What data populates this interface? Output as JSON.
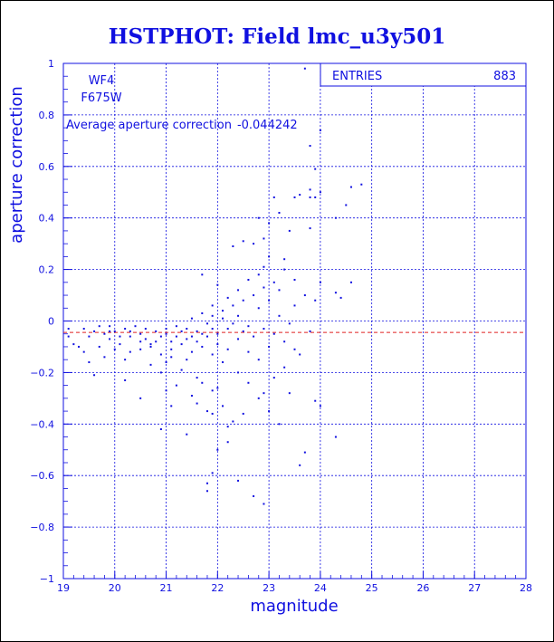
{
  "chart_data": {
    "type": "scatter",
    "title": "HSTPHOT: Field lmc_u3y501",
    "xlabel": "magnitude",
    "ylabel": "aperture correction",
    "xlim": [
      19,
      28
    ],
    "ylim": [
      -1,
      1
    ],
    "xticks": [
      "19",
      "20",
      "21",
      "22",
      "23",
      "24",
      "25",
      "26",
      "27",
      "28"
    ],
    "yticks": [
      "-1",
      "-0.8",
      "-0.6",
      "-0.4",
      "-0.2",
      "0",
      "0.2",
      "0.4",
      "0.6",
      "0.8",
      "1"
    ],
    "grid": true,
    "chip": "WF4",
    "filter": "F675W",
    "average_label": "Average aperture correction",
    "average_value": -0.044242,
    "average_text": "-0.044242",
    "stats": {
      "label": "ENTRIES",
      "value": "883"
    },
    "colors": {
      "points": "#1010e0",
      "average_line": "#e02020",
      "text": "#1010e0"
    },
    "series": [
      {
        "points": [
          [
            23.7,
            0.98
          ],
          [
            24.0,
            0.74
          ],
          [
            23.8,
            0.68
          ],
          [
            23.9,
            0.59
          ],
          [
            24.8,
            0.53
          ],
          [
            23.8,
            0.51
          ],
          [
            24.6,
            0.52
          ],
          [
            23.6,
            0.49
          ],
          [
            24.0,
            0.5
          ],
          [
            23.9,
            0.48
          ],
          [
            23.8,
            0.48
          ],
          [
            24.5,
            0.45
          ],
          [
            23.1,
            0.48
          ],
          [
            23.5,
            0.48
          ],
          [
            24.3,
            0.4
          ],
          [
            22.8,
            0.4
          ],
          [
            23.2,
            0.42
          ],
          [
            23.4,
            0.35
          ],
          [
            23.8,
            0.36
          ],
          [
            22.5,
            0.31
          ],
          [
            22.7,
            0.3
          ],
          [
            23.3,
            0.24
          ],
          [
            22.9,
            0.21
          ],
          [
            22.3,
            0.29
          ],
          [
            24.0,
            0.15
          ],
          [
            24.3,
            0.11
          ],
          [
            24.6,
            0.15
          ],
          [
            24.4,
            0.09
          ],
          [
            23.9,
            0.08
          ],
          [
            24.0,
            -0.33
          ],
          [
            24.3,
            -0.45
          ],
          [
            23.9,
            -0.31
          ],
          [
            23.7,
            -0.51
          ],
          [
            23.6,
            -0.56
          ],
          [
            22.9,
            -0.71
          ],
          [
            22.4,
            -0.62
          ],
          [
            22.7,
            -0.68
          ],
          [
            21.8,
            -0.63
          ],
          [
            21.8,
            -0.66
          ],
          [
            21.9,
            -0.59
          ],
          [
            21.4,
            -0.44
          ],
          [
            21.6,
            -0.32
          ],
          [
            21.9,
            -0.36
          ],
          [
            22.3,
            -0.39
          ],
          [
            22.2,
            -0.47
          ],
          [
            22.0,
            -0.5
          ],
          [
            20.9,
            -0.42
          ],
          [
            21.1,
            -0.33
          ],
          [
            21.0,
            -0.27
          ],
          [
            20.5,
            -0.3
          ],
          [
            20.2,
            -0.23
          ],
          [
            19.6,
            -0.21
          ],
          [
            19.4,
            -0.12
          ],
          [
            19.2,
            -0.09
          ],
          [
            19.1,
            -0.03
          ],
          [
            19.5,
            -0.06
          ],
          [
            19.8,
            -0.05
          ],
          [
            20.0,
            -0.04
          ],
          [
            20.3,
            -0.06
          ],
          [
            20.6,
            -0.03
          ],
          [
            20.8,
            -0.08
          ],
          [
            21.0,
            -0.05
          ],
          [
            21.2,
            -0.02
          ],
          [
            21.4,
            -0.07
          ],
          [
            21.6,
            -0.04
          ],
          [
            21.8,
            -0.01
          ],
          [
            22.0,
            -0.05
          ],
          [
            22.2,
            -0.03
          ],
          [
            22.4,
            0.02
          ],
          [
            22.6,
            -0.02
          ],
          [
            22.8,
            0.05
          ],
          [
            23.0,
            0.08
          ],
          [
            23.2,
            0.02
          ],
          [
            23.4,
            -0.01
          ],
          [
            23.6,
            -0.13
          ],
          [
            23.8,
            -0.04
          ],
          [
            23.3,
            -0.18
          ],
          [
            23.1,
            -0.22
          ],
          [
            22.9,
            -0.28
          ],
          [
            22.6,
            -0.24
          ],
          [
            22.4,
            -0.2
          ],
          [
            22.1,
            -0.16
          ],
          [
            21.9,
            -0.13
          ],
          [
            21.7,
            -0.1
          ],
          [
            21.5,
            -0.12
          ],
          [
            21.3,
            -0.09
          ],
          [
            21.1,
            -0.11
          ],
          [
            20.9,
            -0.13
          ],
          [
            20.7,
            -0.1
          ],
          [
            20.5,
            -0.08
          ],
          [
            20.3,
            -0.12
          ],
          [
            20.1,
            -0.09
          ],
          [
            19.9,
            -0.07
          ],
          [
            19.7,
            -0.1
          ],
          [
            21.5,
            0.01
          ],
          [
            21.7,
            0.03
          ],
          [
            21.9,
            0.02
          ],
          [
            22.1,
            0.04
          ],
          [
            22.3,
            0.06
          ],
          [
            22.5,
            0.08
          ],
          [
            22.7,
            0.1
          ],
          [
            22.9,
            0.13
          ],
          [
            23.1,
            0.15
          ],
          [
            22.6,
            0.16
          ],
          [
            22.4,
            0.12
          ],
          [
            22.2,
            0.09
          ],
          [
            21.9,
            0.06
          ],
          [
            21.7,
            0.18
          ],
          [
            22.0,
            0.14
          ],
          [
            22.8,
            0.18
          ],
          [
            23.0,
            0.25
          ],
          [
            23.2,
            0.12
          ],
          [
            23.5,
            0.06
          ],
          [
            23.7,
            0.1
          ],
          [
            23.5,
            0.16
          ],
          [
            23.3,
            0.2
          ],
          [
            22.9,
            0.32
          ],
          [
            23.0,
            0.38
          ],
          [
            20.4,
            -0.02
          ],
          [
            20.6,
            -0.07
          ],
          [
            21.0,
            -0.03
          ],
          [
            21.2,
            -0.06
          ],
          [
            21.4,
            -0.03
          ],
          [
            21.6,
            -0.08
          ],
          [
            21.8,
            -0.06
          ],
          [
            22.0,
            -0.09
          ],
          [
            22.2,
            -0.11
          ],
          [
            22.4,
            -0.07
          ],
          [
            22.6,
            -0.12
          ],
          [
            22.8,
            -0.15
          ],
          [
            23.0,
            -0.1
          ],
          [
            21.0,
            -0.16
          ],
          [
            21.3,
            -0.19
          ],
          [
            21.6,
            -0.22
          ],
          [
            21.9,
            -0.27
          ],
          [
            22.1,
            -0.33
          ],
          [
            22.5,
            -0.36
          ],
          [
            22.8,
            -0.3
          ],
          [
            23.0,
            -0.35
          ],
          [
            23.2,
            -0.4
          ],
          [
            23.4,
            -0.28
          ],
          [
            20.2,
            -0.15
          ],
          [
            20.0,
            -0.11
          ],
          [
            19.8,
            -0.14
          ],
          [
            19.5,
            -0.16
          ],
          [
            19.3,
            -0.1
          ],
          [
            19.1,
            -0.06
          ],
          [
            20.7,
            -0.17
          ],
          [
            20.9,
            -0.2
          ],
          [
            21.2,
            -0.25
          ],
          [
            21.5,
            -0.29
          ],
          [
            21.8,
            -0.35
          ],
          [
            22.2,
            -0.41
          ],
          [
            22.0,
            -0.26
          ],
          [
            21.7,
            -0.24
          ],
          [
            21.4,
            -0.15
          ],
          [
            21.1,
            -0.14
          ],
          [
            20.8,
            -0.04
          ],
          [
            20.5,
            -0.05
          ],
          [
            20.2,
            -0.03
          ],
          [
            19.9,
            -0.02
          ],
          [
            19.6,
            -0.04
          ],
          [
            19.4,
            -0.03
          ],
          [
            22.3,
            -0.01
          ],
          [
            22.5,
            -0.04
          ],
          [
            22.7,
            -0.06
          ],
          [
            22.9,
            -0.03
          ],
          [
            23.1,
            -0.05
          ],
          [
            23.3,
            -0.08
          ],
          [
            23.5,
            -0.11
          ],
          [
            22.1,
            0.01
          ],
          [
            21.9,
            -0.03
          ],
          [
            21.7,
            -0.05
          ],
          [
            21.5,
            -0.06
          ],
          [
            21.3,
            -0.04
          ],
          [
            21.1,
            -0.08
          ],
          [
            20.9,
            -0.06
          ],
          [
            20.7,
            -0.09
          ],
          [
            20.5,
            -0.11
          ],
          [
            20.3,
            -0.04
          ],
          [
            20.1,
            -0.06
          ],
          [
            19.9,
            -0.04
          ],
          [
            19.7,
            -0.02
          ]
        ]
      }
    ]
  }
}
